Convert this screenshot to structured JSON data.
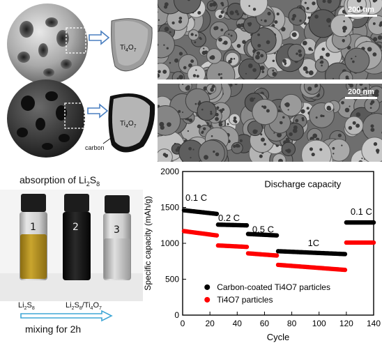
{
  "models": {
    "top_label": "Ti4O7",
    "bottom_label": "Ti4O7",
    "carbon_label": "carbon"
  },
  "sem": {
    "scale_top": "200 nm",
    "scale_bottom": "200 nm"
  },
  "photo": {
    "title_prefix": "absorption of Li",
    "title_sub": "2",
    "title_mid": "S",
    "title_sub2": "8",
    "vial_numbers": [
      "1",
      "2",
      "3"
    ],
    "label_left": "Li2S8",
    "label_right": "Li2S8/Ti4O7",
    "mixing": "mixing for 2h"
  },
  "chart_data": {
    "type": "scatter",
    "title": "Discharge capacity",
    "xlabel": "Cycle",
    "ylabel": "Specific capacity (mAh/g)",
    "xlim": [
      0,
      140
    ],
    "ylim": [
      0,
      2000
    ],
    "xticks": [
      0,
      20,
      40,
      60,
      80,
      100,
      120,
      140
    ],
    "yticks": [
      0,
      500,
      1000,
      1500,
      2000
    ],
    "grid": false,
    "legend_position": "bottom-right",
    "rate_labels": [
      {
        "text": "0.1 C",
        "x": 10,
        "y": 1590
      },
      {
        "text": "0.2 C",
        "x": 34,
        "y": 1310
      },
      {
        "text": "0.5 C",
        "x": 59,
        "y": 1150
      },
      {
        "text": "1C",
        "x": 96,
        "y": 960
      },
      {
        "text": "0.1 C",
        "x": 131,
        "y": 1400
      }
    ],
    "series": [
      {
        "name": "Carbon-coated Ti4O7 particles",
        "color": "#000000",
        "segments": [
          {
            "x_start": 1,
            "x_end": 25,
            "y_start": 1460,
            "y_end": 1410
          },
          {
            "x_start": 26,
            "x_end": 47,
            "y_start": 1260,
            "y_end": 1250
          },
          {
            "x_start": 48,
            "x_end": 69,
            "y_start": 1130,
            "y_end": 1110
          },
          {
            "x_start": 70,
            "x_end": 119,
            "y_start": 890,
            "y_end": 850
          },
          {
            "x_start": 120,
            "x_end": 140,
            "y_start": 1290,
            "y_end": 1290
          }
        ]
      },
      {
        "name": "Ti4O7 particles",
        "color": "#ff0000",
        "segments": [
          {
            "x_start": 1,
            "x_end": 25,
            "y_start": 1170,
            "y_end": 1110
          },
          {
            "x_start": 26,
            "x_end": 47,
            "y_start": 970,
            "y_end": 950
          },
          {
            "x_start": 48,
            "x_end": 69,
            "y_start": 860,
            "y_end": 830
          },
          {
            "x_start": 70,
            "x_end": 119,
            "y_start": 700,
            "y_end": 630
          },
          {
            "x_start": 120,
            "x_end": 140,
            "y_start": 1010,
            "y_end": 1010
          }
        ]
      }
    ]
  }
}
